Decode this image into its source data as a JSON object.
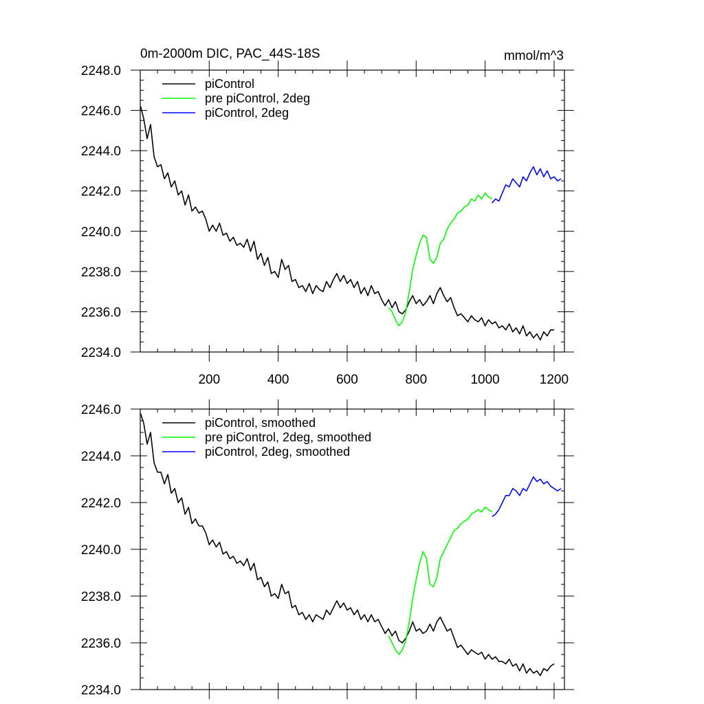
{
  "colors": {
    "black": "#000000",
    "green": "#00ff00",
    "blue": "#0000ff"
  },
  "chart_data": [
    {
      "type": "line",
      "title": "0m-2000m DIC, PAC_44S-18S",
      "units": "mmol/m^3",
      "xlim": [
        0,
        1230
      ],
      "ylim": [
        2234.0,
        2248.0
      ],
      "x_major_ticks": [
        200,
        400,
        600,
        800,
        1000,
        1200
      ],
      "x_tick_labels": [
        "200",
        "400",
        "600",
        "800",
        "1000",
        "1200"
      ],
      "y_major_ticks": [
        2234.0,
        2236.0,
        2238.0,
        2240.0,
        2242.0,
        2244.0,
        2246.0,
        2248.0
      ],
      "y_tick_labels": [
        "2234.0",
        "2236.0",
        "2238.0",
        "2240.0",
        "2242.0",
        "2244.0",
        "2246.0",
        "2248.0"
      ],
      "legend_position": "top-left",
      "series": [
        {
          "name": "piControl",
          "color": "#000000",
          "x": [
            1,
            10,
            20,
            30,
            40,
            50,
            60,
            70,
            80,
            90,
            100,
            110,
            120,
            130,
            140,
            150,
            160,
            170,
            180,
            190,
            200,
            210,
            220,
            230,
            240,
            250,
            260,
            270,
            280,
            290,
            300,
            310,
            320,
            330,
            340,
            350,
            360,
            370,
            380,
            390,
            400,
            410,
            420,
            430,
            440,
            450,
            460,
            470,
            480,
            490,
            500,
            510,
            520,
            530,
            540,
            550,
            560,
            570,
            580,
            590,
            600,
            610,
            620,
            630,
            640,
            650,
            660,
            670,
            680,
            690,
            700,
            710,
            720,
            730,
            740,
            750,
            760,
            770,
            780,
            790,
            800,
            810,
            820,
            830,
            840,
            850,
            860,
            870,
            880,
            890,
            900,
            910,
            920,
            930,
            940,
            950,
            960,
            970,
            980,
            990,
            1000,
            1010,
            1020,
            1030,
            1040,
            1050,
            1060,
            1070,
            1080,
            1090,
            1100,
            1110,
            1120,
            1130,
            1140,
            1150,
            1160,
            1170,
            1180,
            1190,
            1200
          ],
          "values": [
            2246.2,
            2245.6,
            2244.6,
            2245.3,
            2243.7,
            2243.2,
            2243.3,
            2242.6,
            2242.9,
            2242.2,
            2242.5,
            2241.8,
            2242.0,
            2241.3,
            2241.8,
            2241.0,
            2241.2,
            2240.9,
            2241.0,
            2240.6,
            2240.0,
            2240.3,
            2240.0,
            2240.4,
            2239.8,
            2239.9,
            2239.5,
            2239.7,
            2239.3,
            2239.4,
            2239.2,
            2239.6,
            2239.0,
            2239.5,
            2238.6,
            2238.9,
            2238.3,
            2238.7,
            2237.9,
            2238.0,
            2237.7,
            2238.6,
            2238.1,
            2238.3,
            2237.5,
            2237.6,
            2237.2,
            2237.3,
            2237.0,
            2237.4,
            2236.9,
            2237.3,
            2237.1,
            2237.0,
            2237.5,
            2237.2,
            2237.6,
            2237.9,
            2237.5,
            2237.8,
            2237.4,
            2237.6,
            2237.2,
            2237.5,
            2236.9,
            2237.2,
            2236.8,
            2237.3,
            2236.9,
            2237.0,
            2236.6,
            2236.3,
            2236.6,
            2236.2,
            2236.5,
            2236.0,
            2235.9,
            2236.1,
            2236.5,
            2236.8,
            2236.4,
            2236.6,
            2236.3,
            2236.5,
            2236.8,
            2236.4,
            2236.9,
            2237.2,
            2236.8,
            2236.5,
            2236.7,
            2236.2,
            2235.8,
            2235.9,
            2235.7,
            2235.5,
            2235.8,
            2235.6,
            2235.5,
            2235.7,
            2235.3,
            2235.6,
            2235.4,
            2235.5,
            2235.2,
            2235.3,
            2235.1,
            2235.4,
            2235.0,
            2235.2,
            2234.9,
            2235.3,
            2234.8,
            2235.0,
            2234.7,
            2234.9,
            2234.6,
            2235.0,
            2234.8,
            2235.1,
            2235.1
          ]
        },
        {
          "name": "pre piControl, 2deg",
          "color": "#00ff00",
          "x": [
            720,
            730,
            740,
            750,
            760,
            770,
            780,
            790,
            800,
            810,
            820,
            830,
            840,
            850,
            860,
            870,
            880,
            890,
            900,
            910,
            920,
            930,
            940,
            950,
            960,
            970,
            980,
            990,
            1000,
            1010,
            1020
          ],
          "values": [
            2236.2,
            2236.0,
            2235.6,
            2235.3,
            2235.5,
            2236.0,
            2237.0,
            2238.1,
            2238.8,
            2239.4,
            2239.8,
            2239.7,
            2238.6,
            2238.4,
            2238.7,
            2239.4,
            2239.6,
            2240.1,
            2240.4,
            2240.6,
            2240.9,
            2241.0,
            2241.2,
            2241.3,
            2241.6,
            2241.5,
            2241.8,
            2241.6,
            2241.9,
            2241.7,
            2241.6
          ]
        },
        {
          "name": "piControl, 2deg",
          "color": "#0000ff",
          "x": [
            1020,
            1030,
            1040,
            1050,
            1060,
            1070,
            1080,
            1090,
            1100,
            1110,
            1120,
            1130,
            1140,
            1150,
            1160,
            1170,
            1180,
            1190,
            1200,
            1210,
            1220
          ],
          "values": [
            2241.4,
            2241.6,
            2241.5,
            2241.9,
            2242.3,
            2242.2,
            2242.6,
            2242.4,
            2242.2,
            2242.7,
            2242.5,
            2242.9,
            2243.2,
            2242.8,
            2243.1,
            2242.7,
            2243.0,
            2242.6,
            2242.7,
            2242.5,
            2242.6
          ]
        }
      ]
    },
    {
      "type": "line",
      "xlim": [
        0,
        1230
      ],
      "ylim": [
        2234.0,
        2246.0
      ],
      "x_major_ticks": [
        200,
        400,
        600,
        800,
        1000,
        1200
      ],
      "y_major_ticks": [
        2234.0,
        2236.0,
        2238.0,
        2240.0,
        2242.0,
        2244.0,
        2246.0
      ],
      "y_tick_labels": [
        "2234.0",
        "2236.0",
        "2238.0",
        "2240.0",
        "2242.0",
        "2244.0",
        "2246.0"
      ],
      "legend_position": "top-left",
      "series": [
        {
          "name": "piControl, smoothed",
          "color": "#000000",
          "x": [
            1,
            10,
            20,
            30,
            40,
            50,
            60,
            70,
            80,
            90,
            100,
            110,
            120,
            130,
            140,
            150,
            160,
            170,
            180,
            190,
            200,
            210,
            220,
            230,
            240,
            250,
            260,
            270,
            280,
            290,
            300,
            310,
            320,
            330,
            340,
            350,
            360,
            370,
            380,
            390,
            400,
            410,
            420,
            430,
            440,
            450,
            460,
            470,
            480,
            490,
            500,
            510,
            520,
            530,
            540,
            550,
            560,
            570,
            580,
            590,
            600,
            610,
            620,
            630,
            640,
            650,
            660,
            670,
            680,
            690,
            700,
            710,
            720,
            730,
            740,
            750,
            760,
            770,
            780,
            790,
            800,
            810,
            820,
            830,
            840,
            850,
            860,
            870,
            880,
            890,
            900,
            910,
            920,
            930,
            940,
            950,
            960,
            970,
            980,
            990,
            1000,
            1010,
            1020,
            1030,
            1040,
            1050,
            1060,
            1070,
            1080,
            1090,
            1100,
            1110,
            1120,
            1130,
            1140,
            1150,
            1160,
            1170,
            1180,
            1190,
            1200
          ],
          "values": [
            2245.8,
            2245.4,
            2244.5,
            2245.0,
            2243.7,
            2243.3,
            2243.3,
            2242.8,
            2243.2,
            2242.4,
            2242.6,
            2242.0,
            2242.2,
            2241.5,
            2241.8,
            2241.1,
            2241.3,
            2241.0,
            2241.0,
            2240.7,
            2240.2,
            2240.4,
            2240.1,
            2240.3,
            2239.8,
            2239.9,
            2239.6,
            2239.7,
            2239.4,
            2239.5,
            2239.3,
            2239.6,
            2239.1,
            2239.4,
            2238.7,
            2238.8,
            2238.4,
            2238.6,
            2238.0,
            2238.1,
            2237.9,
            2238.5,
            2238.1,
            2238.2,
            2237.5,
            2237.6,
            2237.2,
            2237.3,
            2237.0,
            2237.2,
            2236.9,
            2237.2,
            2237.1,
            2237.0,
            2237.4,
            2237.2,
            2237.5,
            2237.8,
            2237.5,
            2237.7,
            2237.4,
            2237.5,
            2237.2,
            2237.4,
            2237.0,
            2237.2,
            2236.9,
            2237.2,
            2236.9,
            2237.0,
            2236.7,
            2236.4,
            2236.6,
            2236.3,
            2236.5,
            2236.1,
            2236.0,
            2236.2,
            2236.5,
            2236.9,
            2236.5,
            2236.6,
            2236.4,
            2236.5,
            2236.8,
            2236.5,
            2236.9,
            2237.1,
            2236.8,
            2236.5,
            2236.6,
            2236.2,
            2235.8,
            2235.9,
            2235.7,
            2235.5,
            2235.7,
            2235.6,
            2235.5,
            2235.6,
            2235.3,
            2235.5,
            2235.3,
            2235.4,
            2235.2,
            2235.2,
            2235.1,
            2235.3,
            2235.0,
            2235.1,
            2234.8,
            2235.1,
            2234.7,
            2234.9,
            2234.7,
            2234.8,
            2234.6,
            2234.9,
            2234.8,
            2235.0,
            2235.1
          ]
        },
        {
          "name": "pre piControl, 2deg, smoothed",
          "color": "#00ff00",
          "x": [
            720,
            730,
            740,
            750,
            760,
            770,
            780,
            790,
            800,
            810,
            820,
            830,
            840,
            850,
            860,
            870,
            880,
            890,
            900,
            910,
            920,
            930,
            940,
            950,
            960,
            970,
            980,
            990,
            1000,
            1010,
            1020
          ],
          "values": [
            2236.3,
            2236.0,
            2235.7,
            2235.5,
            2235.7,
            2236.1,
            2236.9,
            2237.9,
            2238.7,
            2239.4,
            2239.9,
            2239.6,
            2238.5,
            2238.4,
            2238.8,
            2239.6,
            2239.9,
            2240.2,
            2240.5,
            2240.8,
            2240.9,
            2241.1,
            2241.2,
            2241.3,
            2241.5,
            2241.6,
            2241.7,
            2241.6,
            2241.8,
            2241.7,
            2241.6
          ]
        },
        {
          "name": "piControl, 2deg, smoothed",
          "color": "#0000ff",
          "x": [
            1020,
            1030,
            1040,
            1050,
            1060,
            1070,
            1080,
            1090,
            1100,
            1110,
            1120,
            1130,
            1140,
            1150,
            1160,
            1170,
            1180,
            1190,
            1200,
            1210,
            1220
          ],
          "values": [
            2241.4,
            2241.5,
            2241.7,
            2242.0,
            2242.3,
            2242.3,
            2242.6,
            2242.5,
            2242.3,
            2242.6,
            2242.5,
            2242.8,
            2243.1,
            2242.9,
            2243.0,
            2242.8,
            2242.9,
            2242.7,
            2242.6,
            2242.5,
            2242.6
          ]
        }
      ]
    }
  ]
}
